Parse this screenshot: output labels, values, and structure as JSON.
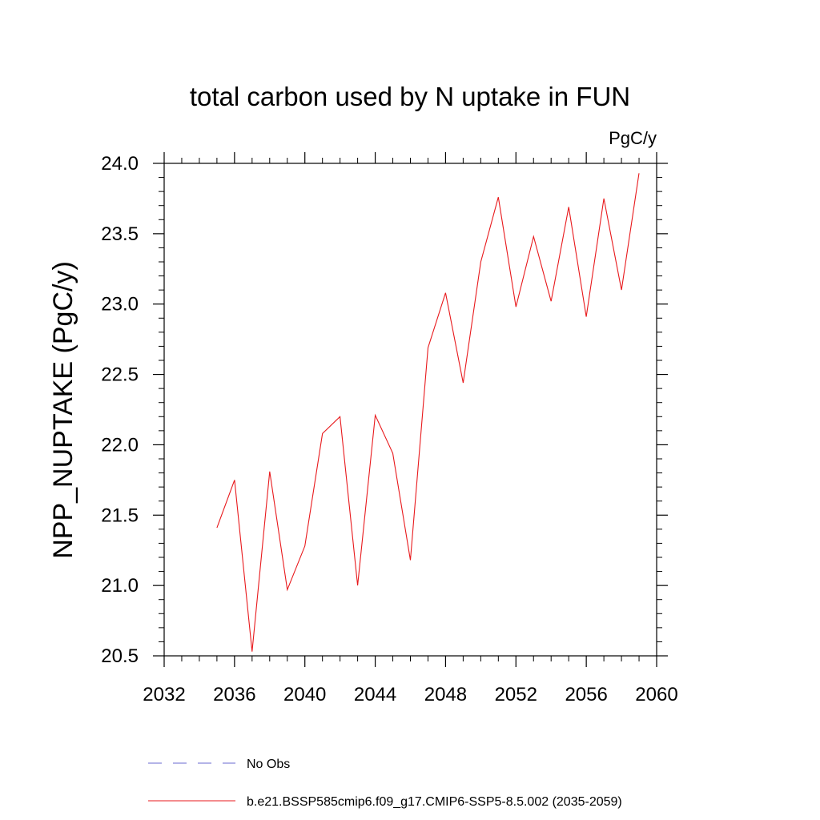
{
  "chart_data": {
    "type": "line",
    "title": "total carbon used by N uptake in FUN",
    "units_label": "PgC/y",
    "ylabel": "NPP_NUPTAKE  (PgC/y)",
    "xlabel": "",
    "xlim": [
      2032,
      2060
    ],
    "ylim": [
      20.5,
      24.0
    ],
    "xticks": [
      2032,
      2036,
      2040,
      2044,
      2048,
      2052,
      2056,
      2060
    ],
    "xtick_labels": [
      "2032",
      "2036",
      "2040",
      "2044",
      "2048",
      "2052",
      "2056",
      "2060"
    ],
    "yticks": [
      20.5,
      21.0,
      21.5,
      22.0,
      22.5,
      23.0,
      23.5,
      24.0
    ],
    "ytick_labels": [
      "20.5",
      "21.0",
      "21.5",
      "22.0",
      "22.5",
      "23.0",
      "23.5",
      "24.0"
    ],
    "grid": false,
    "legend_position": "bottom",
    "series": [
      {
        "name": "b.e21.BSSP585cmip6.f09_g17.CMIP6-SSP5-8.5.002 (2035-2059)",
        "color": "#e8191c",
        "style": "solid",
        "x": [
          2035,
          2036,
          2037,
          2038,
          2039,
          2040,
          2041,
          2042,
          2043,
          2044,
          2045,
          2046,
          2047,
          2048,
          2049,
          2050,
          2051,
          2052,
          2053,
          2054,
          2055,
          2056,
          2057,
          2058,
          2059
        ],
        "values": [
          21.41,
          21.75,
          20.53,
          21.81,
          20.97,
          21.28,
          22.08,
          22.2,
          21.0,
          22.21,
          21.94,
          21.18,
          22.69,
          23.08,
          22.44,
          23.3,
          23.76,
          22.98,
          23.48,
          23.02,
          23.69,
          22.91,
          23.75,
          23.1,
          23.93
        ]
      }
    ],
    "legend": [
      {
        "label": "No Obs",
        "color": "#6a6ad0",
        "style": "dashed"
      },
      {
        "label": "b.e21.BSSP585cmip6.f09_g17.CMIP6-SSP5-8.5.002 (2035-2059)",
        "color": "#e8191c",
        "style": "solid"
      }
    ]
  }
}
